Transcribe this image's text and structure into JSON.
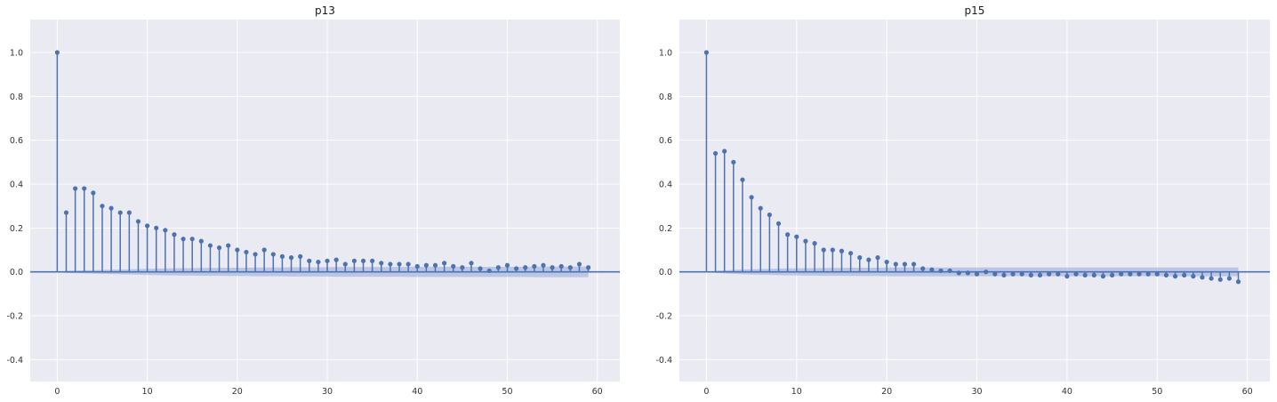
{
  "chart_data": [
    {
      "type": "stem",
      "title": "p13",
      "xlabel": "",
      "ylabel": "",
      "xlim": [
        -3,
        62.5
      ],
      "ylim": [
        -0.5,
        1.15
      ],
      "xticks": [
        0,
        10,
        20,
        30,
        40,
        50,
        60
      ],
      "yticks": [
        -0.4,
        -0.2,
        0.0,
        0.2,
        0.4,
        0.6,
        0.8,
        1.0
      ],
      "grid": true,
      "lags": [
        0,
        1,
        2,
        3,
        4,
        5,
        6,
        7,
        8,
        9,
        10,
        11,
        12,
        13,
        14,
        15,
        16,
        17,
        18,
        19,
        20,
        21,
        22,
        23,
        24,
        25,
        26,
        27,
        28,
        29,
        30,
        31,
        32,
        33,
        34,
        35,
        36,
        37,
        38,
        39,
        40,
        41,
        42,
        43,
        44,
        45,
        46,
        47,
        48,
        49,
        50,
        51,
        52,
        53,
        54,
        55,
        56,
        57,
        58,
        59
      ],
      "values": [
        1.0,
        0.27,
        0.38,
        0.38,
        0.36,
        0.3,
        0.29,
        0.27,
        0.27,
        0.23,
        0.21,
        0.2,
        0.19,
        0.17,
        0.15,
        0.15,
        0.14,
        0.12,
        0.11,
        0.12,
        0.1,
        0.09,
        0.08,
        0.1,
        0.08,
        0.07,
        0.065,
        0.07,
        0.05,
        0.045,
        0.05,
        0.055,
        0.035,
        0.05,
        0.05,
        0.05,
        0.04,
        0.035,
        0.035,
        0.035,
        0.025,
        0.03,
        0.03,
        0.04,
        0.025,
        0.02,
        0.04,
        0.015,
        0.005,
        0.02,
        0.03,
        0.015,
        0.02,
        0.025,
        0.03,
        0.02,
        0.025,
        0.02,
        0.035,
        0.02
      ],
      "confint_upper": [
        0.0,
        0.005,
        0.006,
        0.007,
        0.008,
        0.009,
        0.01,
        0.011,
        0.012,
        0.013,
        0.014,
        0.015,
        0.016,
        0.016,
        0.017,
        0.017,
        0.018,
        0.018,
        0.018,
        0.019,
        0.019,
        0.019,
        0.02,
        0.02,
        0.02,
        0.02,
        0.021,
        0.021,
        0.021,
        0.021,
        0.021,
        0.022,
        0.022,
        0.022,
        0.022,
        0.022,
        0.022,
        0.022,
        0.022,
        0.023,
        0.023,
        0.023,
        0.023,
        0.023,
        0.023,
        0.023,
        0.023,
        0.023,
        0.023,
        0.023,
        0.023,
        0.023,
        0.023,
        0.024,
        0.024,
        0.024,
        0.024,
        0.024,
        0.024,
        0.024
      ],
      "colors": {
        "stem": "#4c72b0",
        "band": "#a3b1dc",
        "background": "#eaeaf2",
        "grid": "#ffffff"
      }
    },
    {
      "type": "stem",
      "title": "p15",
      "xlabel": "",
      "ylabel": "",
      "xlim": [
        -3,
        62.5
      ],
      "ylim": [
        -0.5,
        1.15
      ],
      "xticks": [
        0,
        10,
        20,
        30,
        40,
        50,
        60
      ],
      "yticks": [
        -0.4,
        -0.2,
        0.0,
        0.2,
        0.4,
        0.6,
        0.8,
        1.0
      ],
      "grid": true,
      "lags": [
        0,
        1,
        2,
        3,
        4,
        5,
        6,
        7,
        8,
        9,
        10,
        11,
        12,
        13,
        14,
        15,
        16,
        17,
        18,
        19,
        20,
        21,
        22,
        23,
        24,
        25,
        26,
        27,
        28,
        29,
        30,
        31,
        32,
        33,
        34,
        35,
        36,
        37,
        38,
        39,
        40,
        41,
        42,
        43,
        44,
        45,
        46,
        47,
        48,
        49,
        50,
        51,
        52,
        53,
        54,
        55,
        56,
        57,
        58,
        59
      ],
      "values": [
        1.0,
        0.54,
        0.55,
        0.5,
        0.42,
        0.34,
        0.29,
        0.26,
        0.22,
        0.17,
        0.16,
        0.14,
        0.13,
        0.1,
        0.1,
        0.095,
        0.085,
        0.065,
        0.055,
        0.065,
        0.045,
        0.035,
        0.035,
        0.035,
        0.015,
        0.01,
        0.005,
        0.005,
        -0.005,
        -0.005,
        -0.01,
        0.0,
        -0.01,
        -0.015,
        -0.01,
        -0.01,
        -0.015,
        -0.015,
        -0.01,
        -0.01,
        -0.02,
        -0.01,
        -0.015,
        -0.015,
        -0.02,
        -0.015,
        -0.01,
        -0.01,
        -0.01,
        -0.01,
        -0.01,
        -0.015,
        -0.02,
        -0.015,
        -0.02,
        -0.025,
        -0.03,
        -0.035,
        -0.03,
        -0.045
      ],
      "confint_upper": [
        0.0,
        0.005,
        0.007,
        0.009,
        0.011,
        0.012,
        0.013,
        0.014,
        0.015,
        0.016,
        0.016,
        0.017,
        0.017,
        0.018,
        0.018,
        0.018,
        0.019,
        0.019,
        0.019,
        0.019,
        0.02,
        0.02,
        0.02,
        0.02,
        0.02,
        0.02,
        0.02,
        0.02,
        0.02,
        0.02,
        0.02,
        0.02,
        0.02,
        0.02,
        0.02,
        0.02,
        0.02,
        0.02,
        0.02,
        0.02,
        0.02,
        0.02,
        0.02,
        0.02,
        0.02,
        0.02,
        0.02,
        0.02,
        0.02,
        0.02,
        0.02,
        0.02,
        0.02,
        0.02,
        0.02,
        0.02,
        0.02,
        0.02,
        0.02,
        0.02
      ],
      "colors": {
        "stem": "#4c72b0",
        "band": "#a3b1dc",
        "background": "#eaeaf2",
        "grid": "#ffffff"
      }
    }
  ]
}
